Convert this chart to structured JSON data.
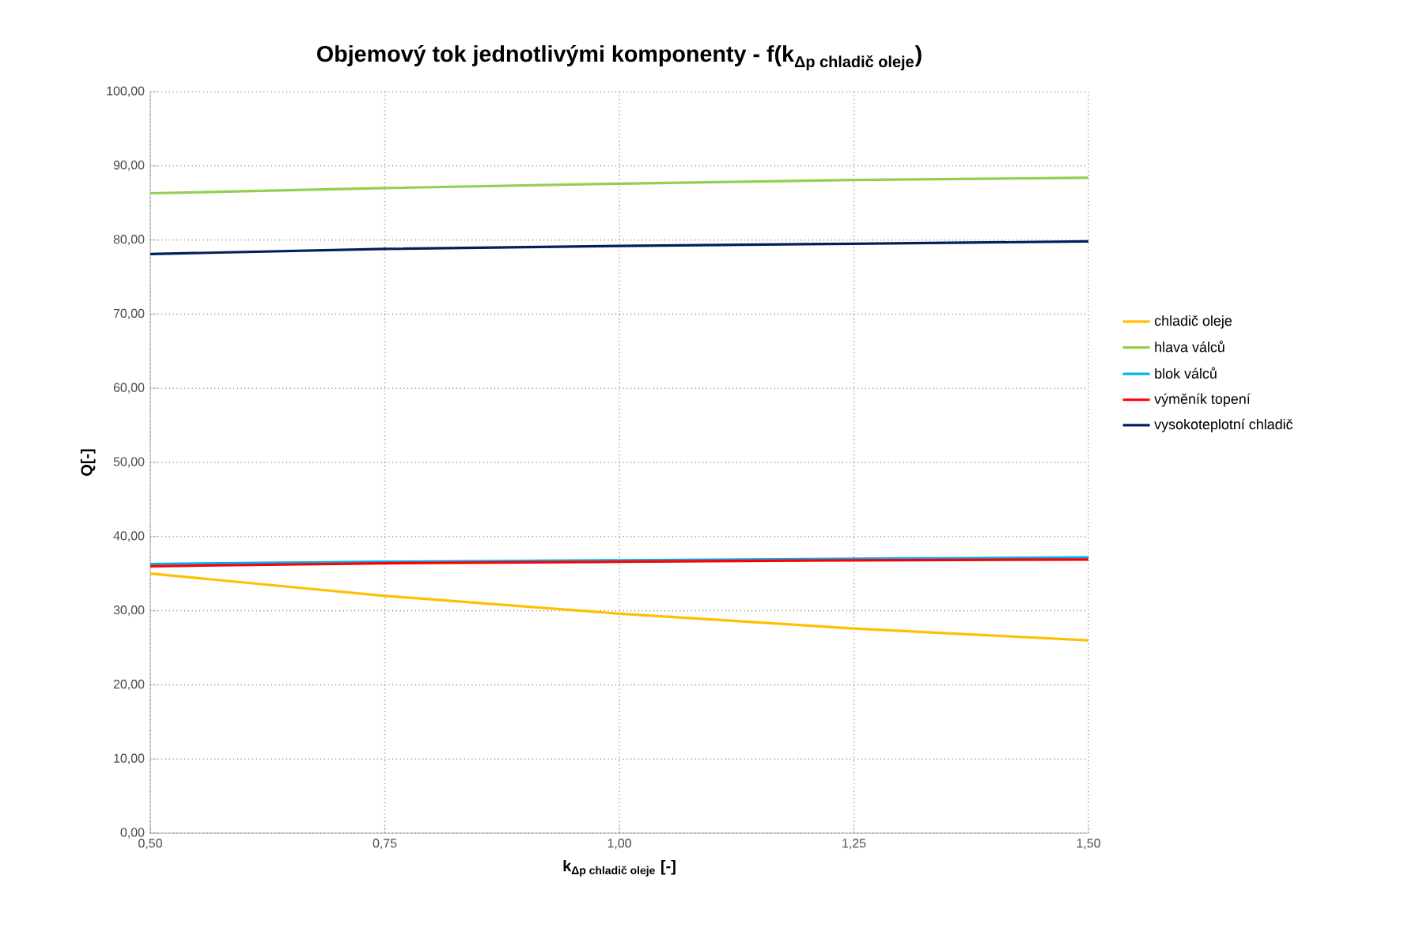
{
  "chart_data": {
    "type": "line",
    "title": "\\textbf{Objemový tok jednotlivými komponenty - f(k}_{\\textbf{Δp chladič oleje}}\\textbf{)}",
    "xlabel": "\\textbf{k}_{\\textbf{Δp chladič oleje}}\\textbf{ [-]}",
    "ylabel": "Q[-]",
    "x": [
      0.5,
      0.75,
      1.0,
      1.25,
      1.5
    ],
    "xlim": [
      0.5,
      1.5
    ],
    "xticks": [
      {
        "value": 0.5,
        "label": "0,50"
      },
      {
        "value": 0.75,
        "label": "0,75"
      },
      {
        "value": 1.0,
        "label": "1,00"
      },
      {
        "value": 1.25,
        "label": "1,25"
      },
      {
        "value": 1.5,
        "label": "1,50"
      }
    ],
    "ylim": [
      0,
      100
    ],
    "yticks": [
      {
        "value": 0,
        "label": "0,00"
      },
      {
        "value": 10,
        "label": "10,00"
      },
      {
        "value": 20,
        "label": "20,00"
      },
      {
        "value": 30,
        "label": "30,00"
      },
      {
        "value": 40,
        "label": "40,00"
      },
      {
        "value": 50,
        "label": "50,00"
      },
      {
        "value": 60,
        "label": "60,00"
      },
      {
        "value": 70,
        "label": "70,00"
      },
      {
        "value": 80,
        "label": "80,00"
      },
      {
        "value": 90,
        "label": "90,00"
      },
      {
        "value": 100,
        "label": "100,00"
      }
    ],
    "grid": true,
    "legend": "right",
    "marker": "none",
    "line_style": "solid",
    "series": [
      {
        "name": "chladič oleje",
        "color": "#ffc000",
        "values": [
          35.0,
          32.0,
          29.6,
          27.6,
          26.0
        ]
      },
      {
        "name": "hlava válců",
        "color": "#92d050",
        "values": [
          86.3,
          87.0,
          87.6,
          88.1,
          88.4
        ]
      },
      {
        "name": "blok válců",
        "color": "#00b0f0",
        "values": [
          36.3,
          36.6,
          36.8,
          37.0,
          37.2
        ]
      },
      {
        "name": "výměník topení",
        "color": "#ff0000",
        "values": [
          36.0,
          36.4,
          36.6,
          36.8,
          36.9
        ]
      },
      {
        "name": "vysokoteplotní chladič",
        "color": "#002060",
        "values": [
          78.1,
          78.8,
          79.2,
          79.5,
          79.8
        ]
      }
    ]
  }
}
